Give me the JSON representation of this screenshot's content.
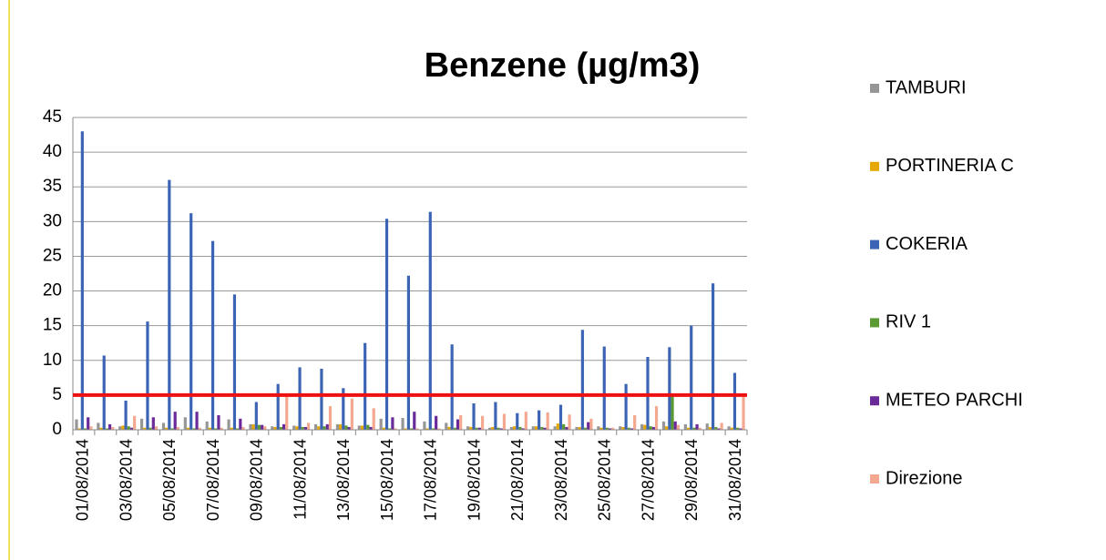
{
  "chart_data": {
    "type": "bar",
    "title": "Benzene (µg/m3)",
    "categories": [
      "01/08/2014",
      null,
      "03/08/2014",
      null,
      "05/08/2014",
      null,
      "07/08/2014",
      null,
      "09/08/2014",
      null,
      "11/08/2014",
      null,
      "13/08/2014",
      null,
      "15/08/2014",
      null,
      "17/08/2014",
      null,
      "19/08/2014",
      null,
      "21/08/2014",
      null,
      "23/08/2014",
      null,
      "25/08/2014",
      null,
      "27/08/2014",
      null,
      "29/08/2014",
      null,
      "31/08/2014"
    ],
    "series": [
      {
        "name": "TAMBURI",
        "color": "#969696",
        "values": [
          1.5,
          1,
          0.5,
          1.6,
          1,
          1.8,
          1.2,
          1.5,
          0.8,
          0.5,
          0.6,
          0.8,
          0.8,
          0.6,
          1.6,
          1.7,
          1.2,
          1,
          0.5,
          0.3,
          0.4,
          0.5,
          0.5,
          0.4,
          0.5,
          0.5,
          0.8,
          1.2,
          0.8,
          0.9,
          0.5
        ]
      },
      {
        "name": "PORTINERIA C",
        "color": "#e6a800",
        "values": [
          0.2,
          0.3,
          0.6,
          0.3,
          0.3,
          0.3,
          0.3,
          0.3,
          0.8,
          0.4,
          0.5,
          0.5,
          0.8,
          0.6,
          0.3,
          0.2,
          0.2,
          0.4,
          0.4,
          0.4,
          0.5,
          0.5,
          0.9,
          0.4,
          0.3,
          0.4,
          0.7,
          0.5,
          0.3,
          0.4,
          0.3
        ]
      },
      {
        "name": "COKERIA",
        "color": "#3c64b4",
        "values": [
          43,
          10.7,
          4.2,
          15.6,
          36,
          31.2,
          27.2,
          19.5,
          4,
          6.6,
          9,
          8.8,
          6,
          12.5,
          30.4,
          22.2,
          31.4,
          12.3,
          3.8,
          4,
          2.4,
          2.8,
          3.6,
          14.4,
          12,
          6.6,
          10.5,
          11.9,
          15,
          21.1,
          8.2
        ]
      },
      {
        "name": "RIV 1",
        "color": "#5a9a32",
        "values": [
          0.2,
          0.2,
          0.5,
          0.3,
          0.2,
          0.2,
          0.2,
          0.2,
          0.7,
          0.4,
          0.4,
          0.5,
          0.6,
          0.7,
          0.2,
          0.2,
          0.2,
          0.3,
          0.3,
          0.3,
          0.4,
          0.4,
          0.8,
          0.3,
          0.3,
          0.3,
          0.5,
          4.8,
          0.3,
          0.4,
          0.3
        ]
      },
      {
        "name": "METEO PARCHI",
        "color": "#6a2a9a",
        "values": [
          1.8,
          0.8,
          0.3,
          1.8,
          2.6,
          2.6,
          2.1,
          1.6,
          0.7,
          0.8,
          0.4,
          0.8,
          0.4,
          0.4,
          1.8,
          2.6,
          2,
          1.5,
          0.3,
          0.2,
          0.2,
          0.3,
          0.4,
          1.1,
          0.2,
          0.2,
          0.4,
          1.2,
          0.8,
          0.2,
          0.2
        ]
      },
      {
        "name": "Direzione",
        "color": "#f4a890",
        "values": [
          0.5,
          0.4,
          2,
          0.5,
          0.4,
          0.3,
          0.3,
          0.4,
          0.5,
          5,
          1,
          3.4,
          4.5,
          3.1,
          0.2,
          0.2,
          0.2,
          2.1,
          2,
          2.3,
          2.6,
          2.5,
          2.2,
          1.6,
          0.3,
          2.1,
          3.4,
          0.7,
          0.3,
          1,
          5
        ]
      }
    ],
    "ylim": [
      0,
      45
    ],
    "yticks": [
      0,
      5,
      10,
      15,
      20,
      25,
      30,
      35,
      40,
      45
    ],
    "grid": true,
    "legend": "right",
    "reference_line": {
      "value": 5,
      "color": "#ee1111"
    }
  }
}
